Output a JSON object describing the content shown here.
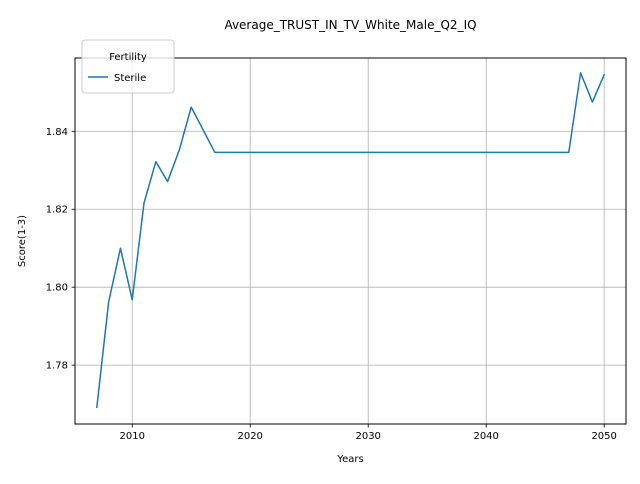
{
  "chart_data": {
    "type": "line",
    "title": "Average_TRUST_IN_TV_White_Male_Q2_IQ",
    "xlabel": "Years",
    "ylabel": "Score(1-3)",
    "xlim": [
      2005.15,
      2051.85
    ],
    "ylim": [
      1.7649,
      1.8588
    ],
    "x_ticks": [
      2010,
      2020,
      2030,
      2040,
      2050
    ],
    "y_ticks": [
      1.78,
      1.8,
      1.82,
      1.84
    ],
    "y_tick_labels": [
      "1.78",
      "1.80",
      "1.82",
      "1.84"
    ],
    "grid": true,
    "legend": {
      "title": "Fertility",
      "placement": "top-left"
    },
    "series": [
      {
        "name": "Sterile",
        "color": "#1f77b4",
        "x": [
          2007,
          2008,
          2009,
          2010,
          2011,
          2012,
          2013,
          2014,
          2015,
          2016,
          2017,
          2018,
          2019,
          2020,
          2021,
          2022,
          2023,
          2024,
          2025,
          2026,
          2027,
          2028,
          2029,
          2030,
          2031,
          2032,
          2033,
          2034,
          2035,
          2036,
          2037,
          2038,
          2039,
          2040,
          2041,
          2042,
          2043,
          2044,
          2045,
          2046,
          2047,
          2048,
          2049,
          2050
        ],
        "y": [
          1.7692,
          1.7962,
          1.81,
          1.7968,
          1.8216,
          1.8322,
          1.8271,
          1.8353,
          1.8462,
          1.8404,
          1.8346,
          1.8346,
          1.8346,
          1.8346,
          1.8346,
          1.8346,
          1.8346,
          1.8346,
          1.8346,
          1.8346,
          1.8346,
          1.8346,
          1.8346,
          1.8346,
          1.8346,
          1.8346,
          1.8346,
          1.8346,
          1.8346,
          1.8346,
          1.8346,
          1.8346,
          1.8346,
          1.8346,
          1.8346,
          1.8346,
          1.8346,
          1.8346,
          1.8346,
          1.8346,
          1.8346,
          1.855,
          1.8475,
          1.8545
        ]
      }
    ]
  }
}
